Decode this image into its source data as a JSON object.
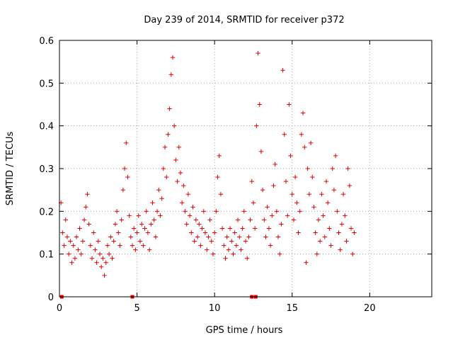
{
  "chart_data": {
    "type": "scatter",
    "title": "Day 239 of 2014, SRMTID for receiver p372",
    "xlabel": "GPS time / hours",
    "ylabel": "SRMTID / TECUs",
    "xlim": [
      0,
      24
    ],
    "ylim": [
      0,
      0.6
    ],
    "xticks": [
      0,
      5,
      10,
      15,
      20
    ],
    "xtick_labels": [
      "0",
      "5",
      "10",
      "15",
      "20"
    ],
    "yticks": [
      0,
      0.1,
      0.2,
      0.3,
      0.4,
      0.5,
      0.6
    ],
    "ytick_labels": [
      "0",
      "0.1",
      "0.2",
      "0.3",
      "0.4",
      "0.5",
      "0.6"
    ],
    "grid": true,
    "marker": "+",
    "color": "#e00000",
    "zero_markers_x": [
      0.15,
      4.7,
      12.4,
      12.65
    ],
    "series": [
      {
        "name": "SRMTID",
        "points": [
          [
            0.1,
            0.22
          ],
          [
            0.2,
            0.15
          ],
          [
            0.3,
            0.12
          ],
          [
            0.4,
            0.18
          ],
          [
            0.5,
            0.14
          ],
          [
            0.6,
            0.1
          ],
          [
            0.7,
            0.13
          ],
          [
            0.8,
            0.08
          ],
          [
            0.9,
            0.12
          ],
          [
            1.0,
            0.09
          ],
          [
            1.1,
            0.14
          ],
          [
            1.2,
            0.11
          ],
          [
            1.3,
            0.16
          ],
          [
            1.4,
            0.1
          ],
          [
            1.5,
            0.13
          ],
          [
            1.6,
            0.18
          ],
          [
            1.7,
            0.21
          ],
          [
            1.8,
            0.24
          ],
          [
            1.9,
            0.17
          ],
          [
            2.0,
            0.12
          ],
          [
            2.1,
            0.09
          ],
          [
            2.2,
            0.15
          ],
          [
            2.3,
            0.11
          ],
          [
            2.4,
            0.08
          ],
          [
            2.5,
            0.13
          ],
          [
            2.6,
            0.1
          ],
          [
            2.7,
            0.07
          ],
          [
            2.8,
            0.09
          ],
          [
            2.9,
            0.05
          ],
          [
            3.0,
            0.08
          ],
          [
            3.1,
            0.12
          ],
          [
            3.2,
            0.1
          ],
          [
            3.3,
            0.14
          ],
          [
            3.4,
            0.09
          ],
          [
            3.5,
            0.13
          ],
          [
            3.6,
            0.17
          ],
          [
            3.7,
            0.2
          ],
          [
            3.8,
            0.15
          ],
          [
            3.9,
            0.12
          ],
          [
            4.0,
            0.18
          ],
          [
            4.1,
            0.25
          ],
          [
            4.2,
            0.3
          ],
          [
            4.3,
            0.36
          ],
          [
            4.4,
            0.28
          ],
          [
            4.5,
            0.19
          ],
          [
            4.6,
            0.14
          ],
          [
            4.7,
            0.12
          ],
          [
            4.8,
            0.16
          ],
          [
            4.9,
            0.11
          ],
          [
            5.0,
            0.15
          ],
          [
            5.1,
            0.19
          ],
          [
            5.2,
            0.13
          ],
          [
            5.3,
            0.17
          ],
          [
            5.4,
            0.12
          ],
          [
            5.5,
            0.16
          ],
          [
            5.6,
            0.2
          ],
          [
            5.7,
            0.15
          ],
          [
            5.8,
            0.11
          ],
          [
            5.9,
            0.17
          ],
          [
            6.0,
            0.22
          ],
          [
            6.1,
            0.18
          ],
          [
            6.2,
            0.14
          ],
          [
            6.3,
            0.2
          ],
          [
            6.4,
            0.25
          ],
          [
            6.5,
            0.19
          ],
          [
            6.6,
            0.23
          ],
          [
            6.7,
            0.3
          ],
          [
            6.8,
            0.35
          ],
          [
            6.9,
            0.28
          ],
          [
            7.0,
            0.38
          ],
          [
            7.1,
            0.44
          ],
          [
            7.2,
            0.52
          ],
          [
            7.3,
            0.56
          ],
          [
            7.4,
            0.4
          ],
          [
            7.5,
            0.32
          ],
          [
            7.6,
            0.27
          ],
          [
            7.7,
            0.35
          ],
          [
            7.8,
            0.29
          ],
          [
            7.9,
            0.22
          ],
          [
            8.0,
            0.26
          ],
          [
            8.1,
            0.2
          ],
          [
            8.2,
            0.17
          ],
          [
            8.3,
            0.24
          ],
          [
            8.4,
            0.19
          ],
          [
            8.5,
            0.15
          ],
          [
            8.6,
            0.21
          ],
          [
            8.7,
            0.13
          ],
          [
            8.8,
            0.18
          ],
          [
            8.9,
            0.14
          ],
          [
            9.0,
            0.17
          ],
          [
            9.1,
            0.12
          ],
          [
            9.2,
            0.16
          ],
          [
            9.3,
            0.2
          ],
          [
            9.4,
            0.15
          ],
          [
            9.5,
            0.11
          ],
          [
            9.6,
            0.14
          ],
          [
            9.7,
            0.18
          ],
          [
            9.8,
            0.13
          ],
          [
            9.9,
            0.1
          ],
          [
            10.0,
            0.15
          ],
          [
            10.1,
            0.2
          ],
          [
            10.2,
            0.28
          ],
          [
            10.3,
            0.33
          ],
          [
            10.4,
            0.24
          ],
          [
            10.5,
            0.16
          ],
          [
            10.6,
            0.12
          ],
          [
            10.7,
            0.09
          ],
          [
            10.8,
            0.14
          ],
          [
            10.9,
            0.11
          ],
          [
            11.0,
            0.16
          ],
          [
            11.1,
            0.13
          ],
          [
            11.2,
            0.1
          ],
          [
            11.3,
            0.15
          ],
          [
            11.4,
            0.12
          ],
          [
            11.5,
            0.18
          ],
          [
            11.6,
            0.14
          ],
          [
            11.7,
            0.11
          ],
          [
            11.8,
            0.16
          ],
          [
            11.9,
            0.2
          ],
          [
            12.0,
            0.13
          ],
          [
            12.1,
            0.09
          ],
          [
            12.2,
            0.14
          ],
          [
            12.3,
            0.18
          ],
          [
            12.4,
            0.27
          ],
          [
            12.5,
            0.22
          ],
          [
            12.6,
            0.16
          ],
          [
            12.7,
            0.4
          ],
          [
            12.8,
            0.57
          ],
          [
            12.9,
            0.45
          ],
          [
            13.0,
            0.34
          ],
          [
            13.1,
            0.25
          ],
          [
            13.2,
            0.18
          ],
          [
            13.3,
            0.14
          ],
          [
            13.4,
            0.21
          ],
          [
            13.5,
            0.16
          ],
          [
            13.6,
            0.12
          ],
          [
            13.7,
            0.19
          ],
          [
            13.8,
            0.26
          ],
          [
            13.9,
            0.31
          ],
          [
            14.0,
            0.2
          ],
          [
            14.1,
            0.14
          ],
          [
            14.2,
            0.1
          ],
          [
            14.3,
            0.17
          ],
          [
            14.4,
            0.53
          ],
          [
            14.5,
            0.38
          ],
          [
            14.6,
            0.27
          ],
          [
            14.7,
            0.19
          ],
          [
            14.8,
            0.45
          ],
          [
            14.9,
            0.33
          ],
          [
            15.0,
            0.24
          ],
          [
            15.1,
            0.18
          ],
          [
            15.2,
            0.28
          ],
          [
            15.3,
            0.22
          ],
          [
            15.4,
            0.15
          ],
          [
            15.5,
            0.2
          ],
          [
            15.6,
            0.38
          ],
          [
            15.7,
            0.43
          ],
          [
            15.8,
            0.35
          ],
          [
            15.9,
            0.08
          ],
          [
            16.0,
            0.3
          ],
          [
            16.1,
            0.24
          ],
          [
            16.2,
            0.36
          ],
          [
            16.3,
            0.28
          ],
          [
            16.4,
            0.21
          ],
          [
            16.5,
            0.15
          ],
          [
            16.6,
            0.1
          ],
          [
            16.7,
            0.18
          ],
          [
            16.8,
            0.13
          ],
          [
            16.9,
            0.24
          ],
          [
            17.0,
            0.19
          ],
          [
            17.1,
            0.14
          ],
          [
            17.2,
            0.27
          ],
          [
            17.3,
            0.22
          ],
          [
            17.4,
            0.16
          ],
          [
            17.5,
            0.12
          ],
          [
            17.6,
            0.3
          ],
          [
            17.7,
            0.25
          ],
          [
            17.8,
            0.33
          ],
          [
            17.9,
            0.2
          ],
          [
            18.0,
            0.15
          ],
          [
            18.1,
            0.11
          ],
          [
            18.2,
            0.17
          ],
          [
            18.3,
            0.24
          ],
          [
            18.4,
            0.19
          ],
          [
            18.5,
            0.13
          ],
          [
            18.6,
            0.3
          ],
          [
            18.7,
            0.26
          ],
          [
            18.8,
            0.16
          ],
          [
            18.9,
            0.1
          ],
          [
            19.0,
            0.15
          ]
        ]
      }
    ]
  }
}
